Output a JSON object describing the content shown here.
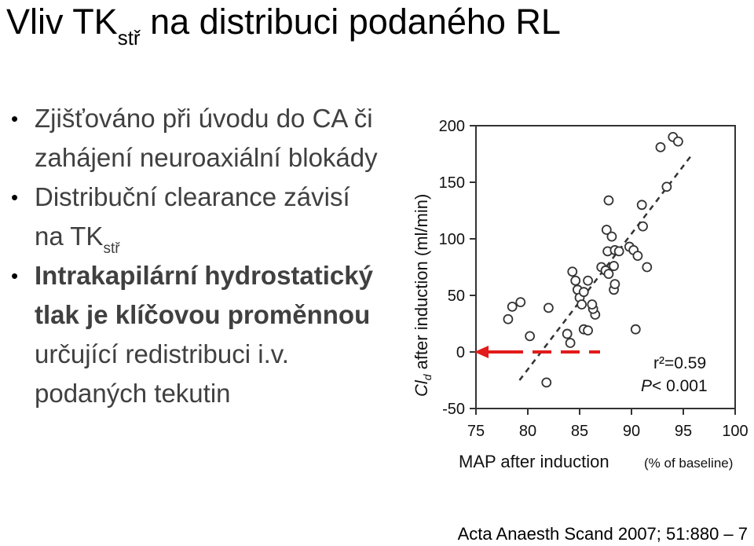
{
  "title": {
    "main": "Vliv TK",
    "sub": "stř",
    "rest": " na distribuci podaného RL"
  },
  "bullets": [
    {
      "text": "Zjišťováno při úvodu do CA či zahájení neuroaxiální blokády",
      "bold": false
    },
    {
      "text": "Distribuční clearance závisí na TK",
      "sub": "stř",
      "bold": false
    },
    {
      "text": "Intrakapilární hydrostatický tlak je klíčovou proměnnou",
      "tail": " určující redistribuci i.v. podaných tekutin",
      "bold": true
    }
  ],
  "chart_data": {
    "type": "scatter",
    "xlabel": "MAP after induction",
    "xlabel_unit": "(% of baseline)",
    "ylabel": "after induction (ml/min)",
    "ylabel_symbol": "Cl",
    "ylabel_sub": "d",
    "xlim": [
      75,
      100
    ],
    "ylim": [
      -50,
      200
    ],
    "x_ticks": [
      "75",
      "80",
      "85",
      "90",
      "95",
      "100"
    ],
    "y_ticks": [
      "-50",
      "0",
      "50",
      "100",
      "150",
      "200"
    ],
    "annotation_r2": "r²=0.59",
    "annotation_p_symbol": "P",
    "annotation_p": "< 0.001",
    "accent_color": "#e21b1b",
    "points": [
      [
        78.1,
        29
      ],
      [
        78.5,
        40
      ],
      [
        79.3,
        44
      ],
      [
        80.2,
        14
      ],
      [
        81.8,
        -27
      ],
      [
        82,
        39
      ],
      [
        83.8,
        16
      ],
      [
        84.1,
        8
      ],
      [
        84.3,
        71
      ],
      [
        84.6,
        63
      ],
      [
        84.8,
        55
      ],
      [
        85,
        48
      ],
      [
        85.2,
        42
      ],
      [
        85.4,
        20
      ],
      [
        85.8,
        19
      ],
      [
        85.4,
        53
      ],
      [
        85.8,
        63
      ],
      [
        86.5,
        33
      ],
      [
        86.3,
        38
      ],
      [
        86.2,
        42
      ],
      [
        87.1,
        75
      ],
      [
        87.5,
        72
      ],
      [
        87.8,
        69
      ],
      [
        87.6,
        108
      ],
      [
        87.8,
        134
      ],
      [
        87.7,
        89
      ],
      [
        88.4,
        90
      ],
      [
        88.1,
        102
      ],
      [
        88.3,
        55
      ],
      [
        88.4,
        60
      ],
      [
        88.8,
        89
      ],
      [
        88.3,
        76
      ],
      [
        89.8,
        93
      ],
      [
        90.2,
        90
      ],
      [
        90.4,
        20
      ],
      [
        90.6,
        85
      ],
      [
        91,
        130
      ],
      [
        91.1,
        111
      ],
      [
        91.5,
        75
      ],
      [
        92.8,
        181
      ],
      [
        93.4,
        146
      ],
      [
        94,
        190
      ],
      [
        94.5,
        186
      ]
    ],
    "regression": {
      "from": [
        79.2,
        -25
      ],
      "to": [
        95.8,
        174
      ]
    },
    "arrow_y": 0
  },
  "citation": "Acta Anaesth Scand 2007; 51:880 – 7"
}
